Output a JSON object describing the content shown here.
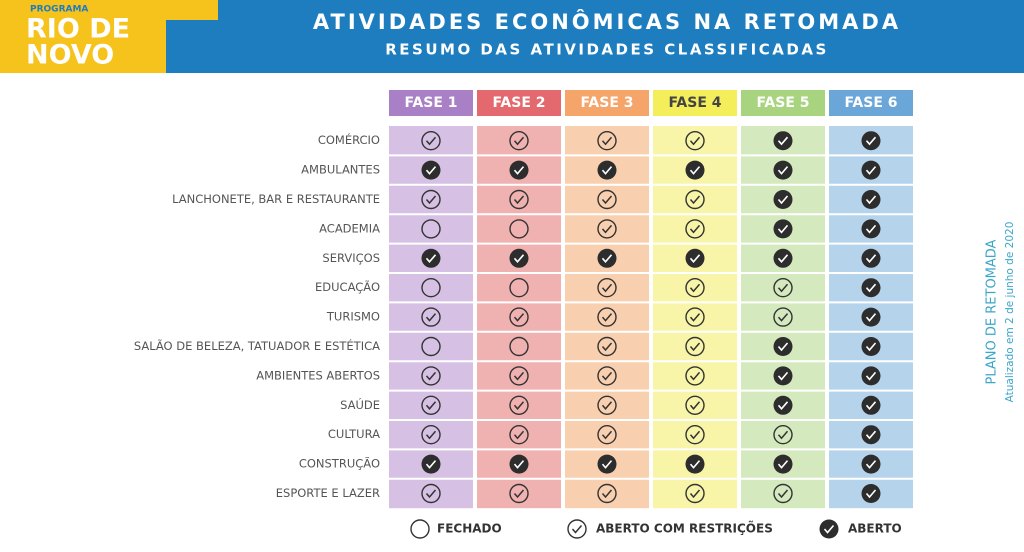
{
  "header": {
    "program": "PROGRAMA",
    "logo_line1": "RIO DE",
    "logo_line2": "NOVO",
    "title": "ATIVIDADES ECONÔMICAS NA RETOMADA",
    "subtitle": "RESUMO DAS ATIVIDADES CLASSIFICADAS"
  },
  "phases": [
    {
      "name": "FASE 1",
      "color": "#a97fc6",
      "bg": "#d6c1e4"
    },
    {
      "name": "FASE 2",
      "color": "#e4696e",
      "bg": "#f0b1b1"
    },
    {
      "name": "FASE 3",
      "color": "#f5a46a",
      "bg": "#f9d0af"
    },
    {
      "name": "FASE 4",
      "color": "#f4ee5a",
      "bg": "#f8f5a9"
    },
    {
      "name": "FASE 5",
      "color": "#a9d47f",
      "bg": "#d4e9bd"
    },
    {
      "name": "FASE 6",
      "color": "#6ba6d8",
      "bg": "#b6d3ec"
    }
  ],
  "legend": [
    "FECHADO",
    "ABERTO COM RESTRIÇÕES",
    "ABERTO"
  ],
  "rows": [
    {
      "activity": "COMÉRCIO",
      "status": [
        1,
        1,
        1,
        1,
        2,
        2
      ]
    },
    {
      "activity": "AMBULANTES",
      "status": [
        2,
        2,
        2,
        2,
        2,
        2
      ]
    },
    {
      "activity": "LANCHONETE, BAR E RESTAURANTE",
      "status": [
        1,
        1,
        1,
        1,
        2,
        2
      ]
    },
    {
      "activity": "ACADEMIA",
      "status": [
        0,
        0,
        1,
        1,
        2,
        2
      ]
    },
    {
      "activity": "SERVIÇOS",
      "status": [
        2,
        2,
        2,
        2,
        2,
        2
      ]
    },
    {
      "activity": "EDUCAÇÃO",
      "status": [
        0,
        0,
        1,
        1,
        1,
        2
      ]
    },
    {
      "activity": "TURISMO",
      "status": [
        1,
        1,
        1,
        1,
        1,
        2
      ]
    },
    {
      "activity": "SALÃO DE BELEZA, TATUADOR E ESTÉTICA",
      "status": [
        0,
        0,
        1,
        1,
        2,
        2
      ]
    },
    {
      "activity": "AMBIENTES ABERTOS",
      "status": [
        1,
        1,
        1,
        1,
        2,
        2
      ]
    },
    {
      "activity": "SAÚDE",
      "status": [
        1,
        1,
        1,
        1,
        2,
        2
      ]
    },
    {
      "activity": "CULTURA",
      "status": [
        1,
        1,
        1,
        1,
        1,
        2
      ]
    },
    {
      "activity": "CONSTRUÇÃO",
      "status": [
        2,
        2,
        2,
        2,
        2,
        2
      ]
    },
    {
      "activity": "ESPORTE E LAZER",
      "status": [
        1,
        1,
        1,
        1,
        1,
        2
      ]
    }
  ],
  "side": {
    "title": "PLANO DE RETOMADA",
    "updated": "Atualizado  em 2 de junho de 2020"
  }
}
